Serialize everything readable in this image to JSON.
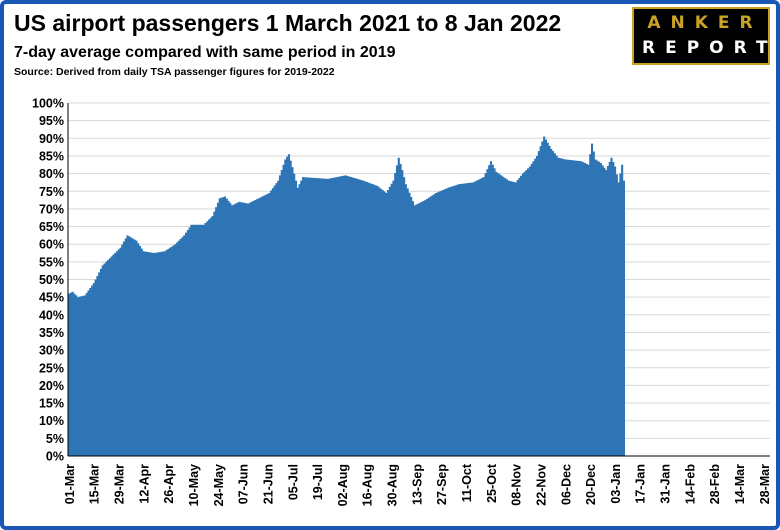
{
  "title": "US airport passengers 1 March 2021 to 8 Jan 2022",
  "subtitle": "7-day average compared with same period in 2019",
  "source": "Source: Derived from daily TSA passenger figures for 2019-2022",
  "logo": {
    "line1": "ANKER",
    "line2": "REPORT"
  },
  "colors": {
    "bar": "#2e75b6",
    "frame": "#1a57b5",
    "grid": "#d9d9d9"
  },
  "chart_data": {
    "type": "bar",
    "title": "US airport passengers 1 March 2021 to 8 Jan 2022",
    "subtitle": "7-day average compared with same period in 2019",
    "xlabel": "",
    "ylabel": "",
    "ylim": [
      0,
      1
    ],
    "y_ticks": [
      "0%",
      "5%",
      "10%",
      "15%",
      "20%",
      "25%",
      "30%",
      "35%",
      "40%",
      "45%",
      "50%",
      "55%",
      "60%",
      "65%",
      "70%",
      "75%",
      "80%",
      "85%",
      "90%",
      "95%",
      "100%"
    ],
    "x_range": [
      "2021-03-01",
      "2022-03-31"
    ],
    "x_tick_labels": [
      "01-Mar",
      "15-Mar",
      "29-Mar",
      "12-Apr",
      "26-Apr",
      "10-May",
      "24-May",
      "07-Jun",
      "21-Jun",
      "05-Jul",
      "19-Jul",
      "02-Aug",
      "16-Aug",
      "30-Aug",
      "13-Sep",
      "27-Sep",
      "11-Oct",
      "25-Oct",
      "08-Nov",
      "22-Nov",
      "06-Dec",
      "20-Dec",
      "03-Jan",
      "17-Jan",
      "31-Jan",
      "14-Feb",
      "28-Feb",
      "14-Mar",
      "28-Mar"
    ],
    "grid": true,
    "legend": "none",
    "series": [
      {
        "x_start": "2021-03-01",
        "x_end": "2022-01-08",
        "frequency": "daily",
        "keypoints": [
          [
            "2021-03-01",
            0.46
          ],
          [
            "2021-03-03",
            0.465
          ],
          [
            "2021-03-06",
            0.45
          ],
          [
            "2021-03-10",
            0.455
          ],
          [
            "2021-03-15",
            0.49
          ],
          [
            "2021-03-20",
            0.54
          ],
          [
            "2021-03-26",
            0.57
          ],
          [
            "2021-03-30",
            0.59
          ],
          [
            "2021-04-03",
            0.625
          ],
          [
            "2021-04-08",
            0.61
          ],
          [
            "2021-04-12",
            0.58
          ],
          [
            "2021-04-18",
            0.575
          ],
          [
            "2021-04-24",
            0.58
          ],
          [
            "2021-04-30",
            0.6
          ],
          [
            "2021-05-05",
            0.625
          ],
          [
            "2021-05-09",
            0.655
          ],
          [
            "2021-05-16",
            0.655
          ],
          [
            "2021-05-21",
            0.68
          ],
          [
            "2021-05-25",
            0.73
          ],
          [
            "2021-05-28",
            0.735
          ],
          [
            "2021-06-01",
            0.71
          ],
          [
            "2021-06-05",
            0.72
          ],
          [
            "2021-06-10",
            0.715
          ],
          [
            "2021-06-16",
            0.73
          ],
          [
            "2021-06-22",
            0.745
          ],
          [
            "2021-06-27",
            0.78
          ],
          [
            "2021-07-01",
            0.84
          ],
          [
            "2021-07-03",
            0.855
          ],
          [
            "2021-07-06",
            0.8
          ],
          [
            "2021-07-08",
            0.76
          ],
          [
            "2021-07-11",
            0.79
          ],
          [
            "2021-07-25",
            0.785
          ],
          [
            "2021-08-04",
            0.795
          ],
          [
            "2021-08-14",
            0.78
          ],
          [
            "2021-08-22",
            0.765
          ],
          [
            "2021-08-27",
            0.745
          ],
          [
            "2021-08-31",
            0.78
          ],
          [
            "2021-09-03",
            0.845
          ],
          [
            "2021-09-05",
            0.81
          ],
          [
            "2021-09-07",
            0.77
          ],
          [
            "2021-09-12",
            0.71
          ],
          [
            "2021-09-18",
            0.725
          ],
          [
            "2021-09-24",
            0.745
          ],
          [
            "2021-10-01",
            0.76
          ],
          [
            "2021-10-07",
            0.77
          ],
          [
            "2021-10-15",
            0.775
          ],
          [
            "2021-10-21",
            0.79
          ],
          [
            "2021-10-25",
            0.835
          ],
          [
            "2021-10-28",
            0.805
          ],
          [
            "2021-11-04",
            0.78
          ],
          [
            "2021-11-08",
            0.775
          ],
          [
            "2021-11-12",
            0.8
          ],
          [
            "2021-11-16",
            0.82
          ],
          [
            "2021-11-20",
            0.85
          ],
          [
            "2021-11-24",
            0.905
          ],
          [
            "2021-11-28",
            0.87
          ],
          [
            "2021-12-02",
            0.845
          ],
          [
            "2021-12-06",
            0.84
          ],
          [
            "2021-12-15",
            0.835
          ],
          [
            "2021-12-19",
            0.825
          ],
          [
            "2021-12-21",
            0.885
          ],
          [
            "2021-12-23",
            0.84
          ],
          [
            "2021-12-26",
            0.83
          ],
          [
            "2021-12-29",
            0.81
          ],
          [
            "2022-01-01",
            0.845
          ],
          [
            "2022-01-03",
            0.82
          ],
          [
            "2022-01-05",
            0.775
          ],
          [
            "2022-01-07",
            0.825
          ],
          [
            "2022-01-08",
            0.78
          ]
        ]
      }
    ]
  }
}
